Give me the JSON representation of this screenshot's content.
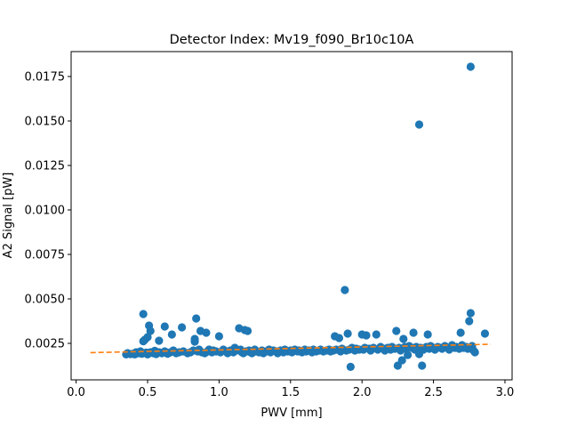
{
  "chart_data": {
    "type": "scatter",
    "title": "Detector Index: Mv19_f090_Br10c10A",
    "xlabel": "PWV [mm]",
    "ylabel": "A2 Signal [pW]",
    "xlim": [
      -0.035,
      3.05
    ],
    "ylim": [
      0.00045,
      0.0189
    ],
    "xticks": [
      0.0,
      0.5,
      1.0,
      1.5,
      2.0,
      2.5,
      3.0
    ],
    "xtick_labels": [
      "0.0",
      "0.5",
      "1.0",
      "1.5",
      "2.0",
      "2.5",
      "3.0"
    ],
    "yticks": [
      0.0025,
      0.005,
      0.0075,
      0.01,
      0.0125,
      0.015,
      0.0175
    ],
    "ytick_labels": [
      "0.0025",
      "0.0050",
      "0.0075",
      "0.0100",
      "0.0125",
      "0.0150",
      "0.0175"
    ],
    "scatter_color": "#1f77b4",
    "fit_color": "#ff7f0e",
    "fit_line": {
      "x": [
        0.1,
        2.9
      ],
      "y": [
        0.00198,
        0.00245
      ]
    },
    "points": [
      [
        0.35,
        0.00188
      ],
      [
        0.36,
        0.00195
      ],
      [
        0.38,
        0.0019
      ],
      [
        0.4,
        0.00192
      ],
      [
        0.41,
        0.00188
      ],
      [
        0.42,
        0.002
      ],
      [
        0.44,
        0.00195
      ],
      [
        0.45,
        0.00205
      ],
      [
        0.46,
        0.00192
      ],
      [
        0.47,
        0.00262
      ],
      [
        0.47,
        0.00415
      ],
      [
        0.48,
        0.0027
      ],
      [
        0.49,
        0.00198
      ],
      [
        0.5,
        0.00285
      ],
      [
        0.5,
        0.00188
      ],
      [
        0.51,
        0.0035
      ],
      [
        0.52,
        0.002
      ],
      [
        0.52,
        0.0032
      ],
      [
        0.54,
        0.00195
      ],
      [
        0.55,
        0.00208
      ],
      [
        0.56,
        0.0019
      ],
      [
        0.58,
        0.00265
      ],
      [
        0.58,
        0.002
      ],
      [
        0.6,
        0.00195
      ],
      [
        0.62,
        0.00345
      ],
      [
        0.62,
        0.00205
      ],
      [
        0.64,
        0.00192
      ],
      [
        0.66,
        0.002
      ],
      [
        0.67,
        0.003
      ],
      [
        0.68,
        0.0021
      ],
      [
        0.7,
        0.00195
      ],
      [
        0.72,
        0.002
      ],
      [
        0.74,
        0.0034
      ],
      [
        0.75,
        0.00205
      ],
      [
        0.78,
        0.00195
      ],
      [
        0.8,
        0.002
      ],
      [
        0.82,
        0.0021
      ],
      [
        0.83,
        0.0026
      ],
      [
        0.83,
        0.00275
      ],
      [
        0.84,
        0.0039
      ],
      [
        0.85,
        0.00205
      ],
      [
        0.86,
        0.00215
      ],
      [
        0.87,
        0.0032
      ],
      [
        0.88,
        0.002
      ],
      [
        0.9,
        0.00195
      ],
      [
        0.91,
        0.0031
      ],
      [
        0.92,
        0.00205
      ],
      [
        0.93,
        0.00215
      ],
      [
        0.95,
        0.002
      ],
      [
        0.96,
        0.0021
      ],
      [
        0.98,
        0.00205
      ],
      [
        1.0,
        0.0029
      ],
      [
        1.01,
        0.002
      ],
      [
        1.03,
        0.00215
      ],
      [
        1.05,
        0.00205
      ],
      [
        1.06,
        0.00195
      ],
      [
        1.08,
        0.0021
      ],
      [
        1.1,
        0.002
      ],
      [
        1.11,
        0.00225
      ],
      [
        1.12,
        0.0021
      ],
      [
        1.14,
        0.00335
      ],
      [
        1.15,
        0.00215
      ],
      [
        1.16,
        0.002
      ],
      [
        1.17,
        0.00195
      ],
      [
        1.18,
        0.00325
      ],
      [
        1.19,
        0.00205
      ],
      [
        1.2,
        0.0032
      ],
      [
        1.21,
        0.0021
      ],
      [
        1.22,
        0.002
      ],
      [
        1.23,
        0.00195
      ],
      [
        1.25,
        0.00215
      ],
      [
        1.26,
        0.00205
      ],
      [
        1.28,
        0.002
      ],
      [
        1.3,
        0.0021
      ],
      [
        1.31,
        0.00195
      ],
      [
        1.33,
        0.00205
      ],
      [
        1.35,
        0.00215
      ],
      [
        1.36,
        0.002
      ],
      [
        1.38,
        0.0021
      ],
      [
        1.4,
        0.00205
      ],
      [
        1.41,
        0.00195
      ],
      [
        1.43,
        0.0021
      ],
      [
        1.45,
        0.002
      ],
      [
        1.46,
        0.00215
      ],
      [
        1.48,
        0.00205
      ],
      [
        1.5,
        0.0021
      ],
      [
        1.51,
        0.002
      ],
      [
        1.53,
        0.00215
      ],
      [
        1.55,
        0.00205
      ],
      [
        1.56,
        0.0021
      ],
      [
        1.58,
        0.002
      ],
      [
        1.6,
        0.00215
      ],
      [
        1.61,
        0.00205
      ],
      [
        1.63,
        0.0021
      ],
      [
        1.65,
        0.002
      ],
      [
        1.66,
        0.00215
      ],
      [
        1.68,
        0.00205
      ],
      [
        1.7,
        0.0021
      ],
      [
        1.71,
        0.00215
      ],
      [
        1.73,
        0.00205
      ],
      [
        1.75,
        0.0021
      ],
      [
        1.77,
        0.00215
      ],
      [
        1.78,
        0.00205
      ],
      [
        1.8,
        0.0021
      ],
      [
        1.81,
        0.0029
      ],
      [
        1.82,
        0.00215
      ],
      [
        1.84,
        0.0028
      ],
      [
        1.85,
        0.00205
      ],
      [
        1.86,
        0.0022
      ],
      [
        1.88,
        0.0055
      ],
      [
        1.89,
        0.0021
      ],
      [
        1.9,
        0.00305
      ],
      [
        1.91,
        0.00215
      ],
      [
        1.92,
        0.00118
      ],
      [
        1.93,
        0.00225
      ],
      [
        1.95,
        0.0021
      ],
      [
        1.96,
        0.0022
      ],
      [
        1.98,
        0.00215
      ],
      [
        2.0,
        0.003
      ],
      [
        2.01,
        0.00215
      ],
      [
        2.02,
        0.00225
      ],
      [
        2.03,
        0.00295
      ],
      [
        2.05,
        0.0022
      ],
      [
        2.06,
        0.0021
      ],
      [
        2.08,
        0.00225
      ],
      [
        2.1,
        0.003
      ],
      [
        2.11,
        0.00215
      ],
      [
        2.13,
        0.0023
      ],
      [
        2.15,
        0.0022
      ],
      [
        2.16,
        0.0021
      ],
      [
        2.18,
        0.00225
      ],
      [
        2.2,
        0.00215
      ],
      [
        2.21,
        0.0023
      ],
      [
        2.23,
        0.0022
      ],
      [
        2.24,
        0.0032
      ],
      [
        2.25,
        0.00125
      ],
      [
        2.26,
        0.00225
      ],
      [
        2.27,
        0.0021
      ],
      [
        2.28,
        0.00155
      ],
      [
        2.29,
        0.00275
      ],
      [
        2.3,
        0.0023
      ],
      [
        2.31,
        0.0022
      ],
      [
        2.32,
        0.00185
      ],
      [
        2.33,
        0.00235
      ],
      [
        2.35,
        0.00225
      ],
      [
        2.36,
        0.0031
      ],
      [
        2.37,
        0.00215
      ],
      [
        2.38,
        0.0023
      ],
      [
        2.4,
        0.0148
      ],
      [
        2.4,
        0.0019
      ],
      [
        2.41,
        0.00225
      ],
      [
        2.42,
        0.00125
      ],
      [
        2.43,
        0.00215
      ],
      [
        2.45,
        0.0023
      ],
      [
        2.46,
        0.003
      ],
      [
        2.47,
        0.0022
      ],
      [
        2.48,
        0.00235
      ],
      [
        2.5,
        0.00225
      ],
      [
        2.51,
        0.00215
      ],
      [
        2.53,
        0.0023
      ],
      [
        2.55,
        0.00225
      ],
      [
        2.56,
        0.0022
      ],
      [
        2.58,
        0.00235
      ],
      [
        2.6,
        0.00225
      ],
      [
        2.61,
        0.00215
      ],
      [
        2.63,
        0.0024
      ],
      [
        2.65,
        0.00225
      ],
      [
        2.66,
        0.0023
      ],
      [
        2.68,
        0.0022
      ],
      [
        2.69,
        0.0031
      ],
      [
        2.7,
        0.0024
      ],
      [
        2.71,
        0.00225
      ],
      [
        2.73,
        0.0023
      ],
      [
        2.74,
        0.0022
      ],
      [
        2.75,
        0.00375
      ],
      [
        2.76,
        0.01805
      ],
      [
        2.76,
        0.0042
      ],
      [
        2.77,
        0.00235
      ],
      [
        2.78,
        0.0021
      ],
      [
        2.79,
        0.002
      ],
      [
        2.86,
        0.00305
      ]
    ]
  }
}
